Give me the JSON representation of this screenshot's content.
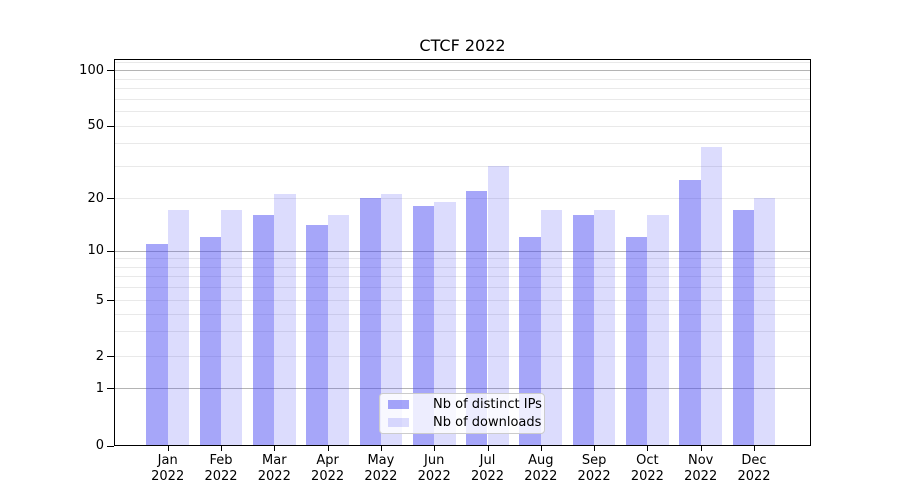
{
  "title": "CTCF 2022",
  "chart_data": {
    "type": "bar",
    "title": "CTCF 2022",
    "categories": [
      "Jan",
      "Feb",
      "Mar",
      "Apr",
      "May",
      "Jun",
      "Jul",
      "Aug",
      "Sep",
      "Oct",
      "Nov",
      "Dec"
    ],
    "category_year": "2022",
    "series": [
      {
        "name": "Nb of distinct IPs",
        "values": [
          11,
          12,
          16,
          14,
          20,
          18,
          22,
          12,
          16,
          12,
          25,
          17
        ],
        "color": "rgba(70,70,242,0.48)"
      },
      {
        "name": "Nb of downloads",
        "values": [
          17,
          17,
          21,
          16,
          21,
          19,
          30,
          17,
          17,
          16,
          38,
          20
        ],
        "color": "rgba(70,70,242,0.19)"
      }
    ],
    "xlabel": "",
    "ylabel": "",
    "y_axis": {
      "scale": "symlog",
      "tick_labels": [
        "0",
        "1",
        "2",
        "5",
        "10",
        "20",
        "50",
        "100"
      ],
      "tick_values": [
        0,
        1,
        2,
        5,
        10,
        20,
        50,
        100
      ],
      "minor_tick_values": [
        3,
        4,
        6,
        7,
        8,
        9,
        30,
        40,
        60,
        70,
        80,
        90,
        110
      ],
      "ylim": [
        0,
        120
      ]
    },
    "grid": true,
    "legend_position": "lower center"
  },
  "legend": {
    "items": [
      {
        "label": "Nb of distinct IPs"
      },
      {
        "label": "Nb of downloads"
      }
    ]
  },
  "colors": {
    "bar_dark": "rgba(70,70,242,0.48)",
    "bar_light": "rgba(70,70,242,0.19)",
    "grid_major": "#b4b4b4",
    "grid_minor": "#e9e9e9",
    "spine": "#000000"
  }
}
